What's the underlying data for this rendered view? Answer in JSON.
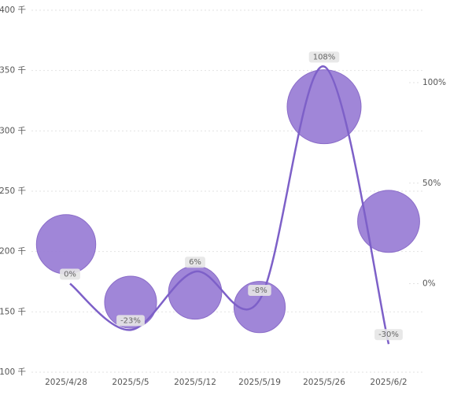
{
  "chart_data": {
    "type": "bubble_line",
    "categories": [
      "2025/4/28",
      "2025/5/5",
      "2025/5/12",
      "2025/5/19",
      "2025/5/26",
      "2025/6/2"
    ],
    "series": [
      {
        "type": "bubble",
        "color": "#9b80d6",
        "values": [
          206,
          158,
          166,
          154,
          320,
          225
        ]
      },
      {
        "type": "line",
        "axis": "y2",
        "color": "#7d60c8",
        "values": [
          0,
          -23,
          6,
          -8,
          108,
          -30
        ],
        "value_labels": [
          "0%",
          "-23%",
          "6%",
          "-8%",
          "108%",
          "-30%"
        ]
      }
    ],
    "ylim": [
      100,
      400
    ],
    "yticks": [
      {
        "value": 100,
        "label": "100 千"
      },
      {
        "value": 150,
        "label": "150 千"
      },
      {
        "value": 200,
        "label": "200 千"
      },
      {
        "value": 250,
        "label": "250 千"
      },
      {
        "value": 300,
        "label": "300 千"
      },
      {
        "value": 350,
        "label": "350 千"
      },
      {
        "value": 400,
        "label": "400 千"
      }
    ],
    "y2lim": [
      -44,
      136
    ],
    "y2ticks": [
      {
        "value": 0,
        "label": "0%"
      },
      {
        "value": 50,
        "label": "50%"
      },
      {
        "value": 100,
        "label": "100%"
      }
    ],
    "grid": true
  }
}
